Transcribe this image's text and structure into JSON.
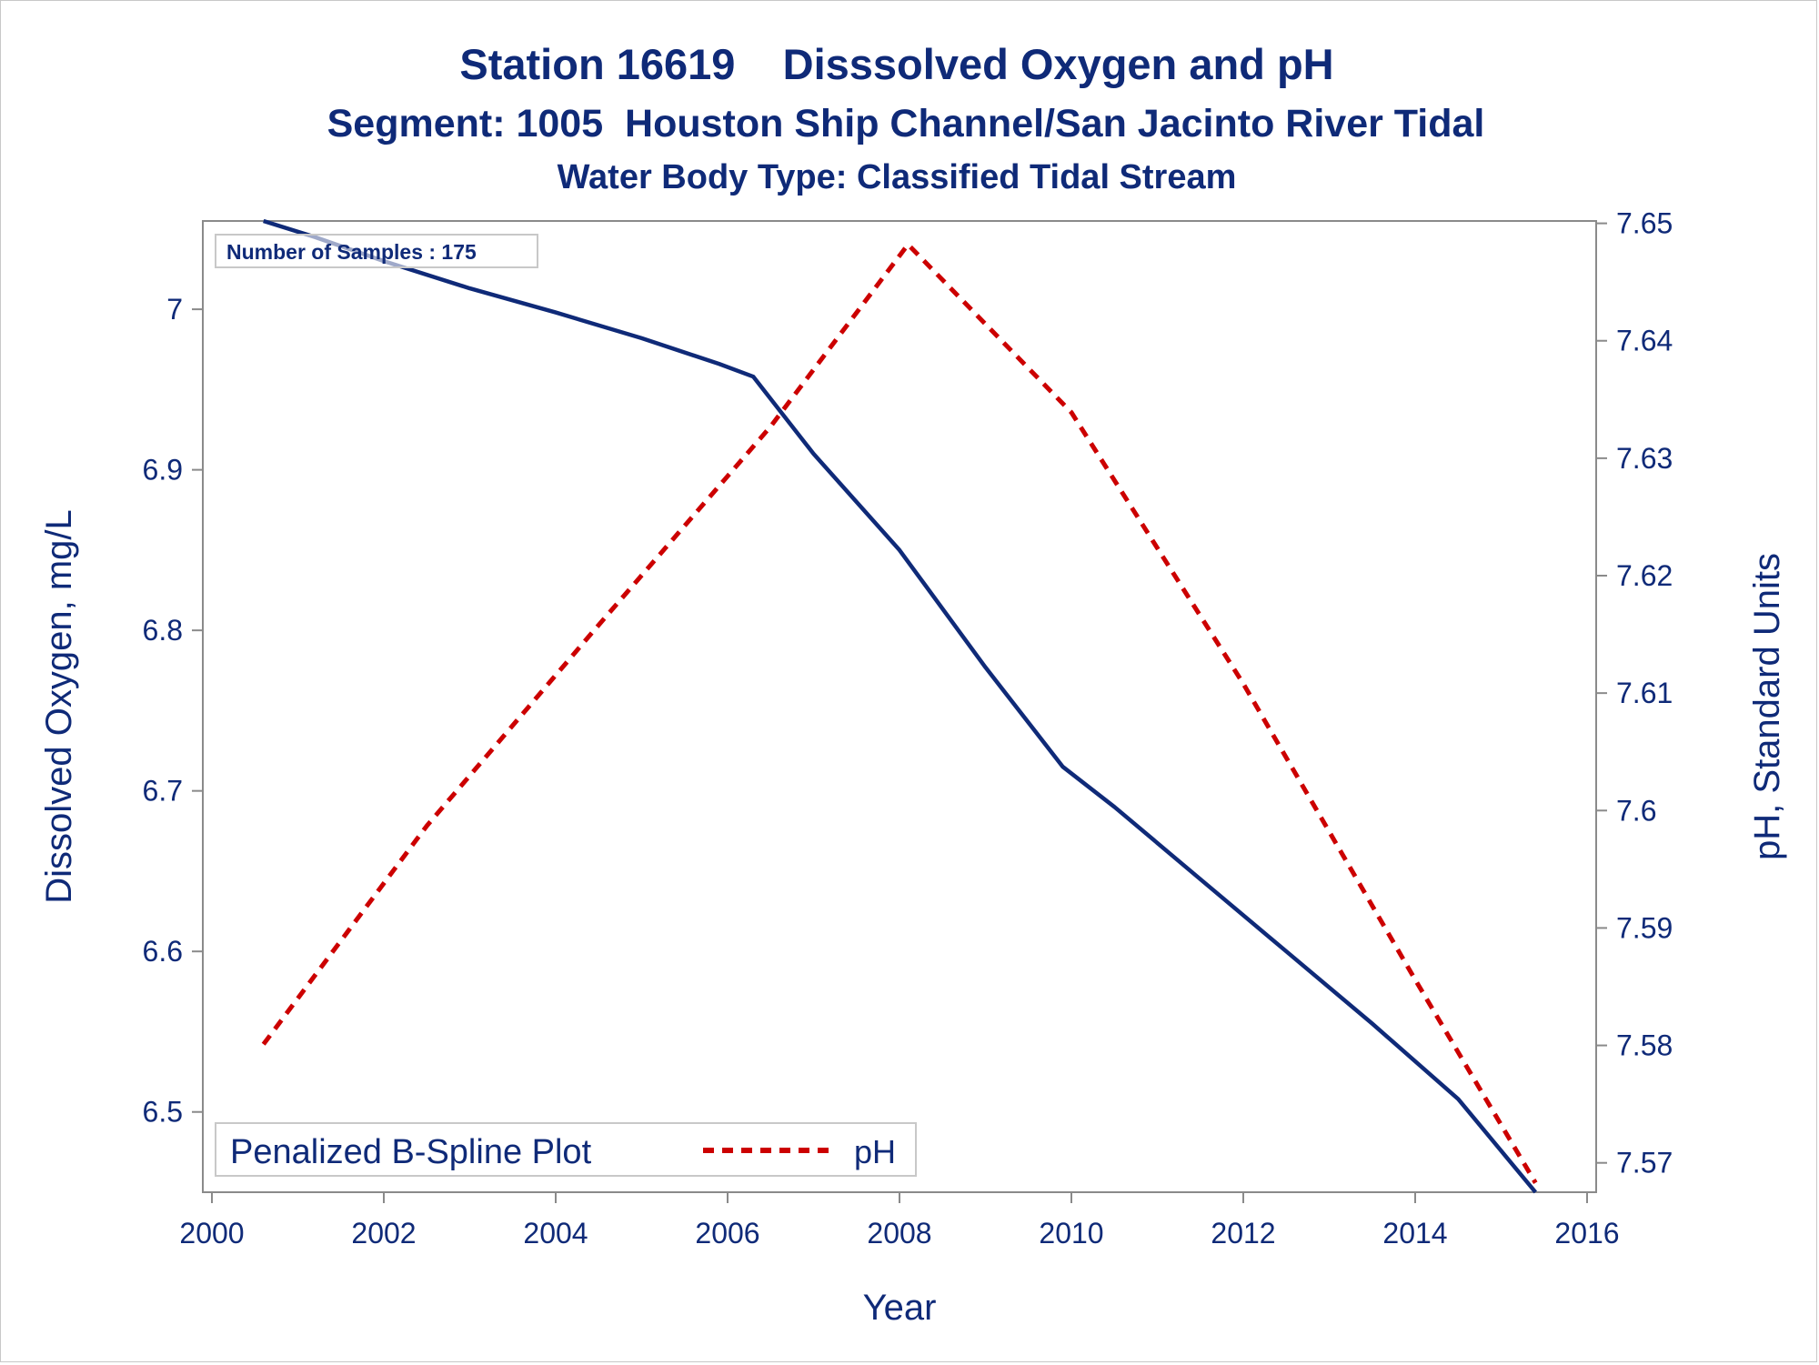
{
  "chart_data": {
    "type": "line",
    "title": "Station 16619    Disssolved Oxygen and pH",
    "subtitle": "Segment: 1005  Houston Ship Channel/San Jacinto River Tidal",
    "subtitle2": "Water Body Type: Classified Tidal Stream",
    "xlabel": "Year",
    "ylabel": "Dissolved Oxygen, mg/L",
    "y2label": "pH, Standard Units",
    "xlim": [
      2000,
      2016
    ],
    "ylim": [
      6.45,
      7.055
    ],
    "y2lim": [
      7.5675,
      7.6502
    ],
    "x_ticks": [
      "2000",
      "2002",
      "2004",
      "2006",
      "2008",
      "2010",
      "2012",
      "2014",
      "2016"
    ],
    "y_ticks": [
      "6.5",
      "6.6",
      "6.7",
      "6.8",
      "6.9",
      "7"
    ],
    "y2_ticks": [
      "7.57",
      "7.58",
      "7.59",
      "7.6",
      "7.61",
      "7.62",
      "7.63",
      "7.64",
      "7.65"
    ],
    "annotation": "Number of Samples : 175",
    "grid": false,
    "legend": {
      "placement": "bottom-left",
      "title": "Penalized B-Spline Plot",
      "entries": [
        "pH"
      ]
    },
    "series": [
      {
        "axis": "left",
        "color": "#0f2a78",
        "style": "solid",
        "x": [
          2000.6,
          2001.2,
          2002.0,
          2003.0,
          2004.0,
          2005.0,
          2005.9,
          2006.3,
          2007.0,
          2008.0,
          2009.0,
          2009.9,
          2010.5,
          2011.5,
          2012.5,
          2013.5,
          2014.5,
          2015.4
        ],
        "y": [
          7.055,
          7.045,
          7.03,
          7.013,
          6.998,
          6.982,
          6.966,
          6.958,
          6.91,
          6.85,
          6.777,
          6.715,
          6.69,
          6.645,
          6.6,
          6.555,
          6.508,
          6.45
        ]
      },
      {
        "name": "pH",
        "axis": "right",
        "color": "#cc0000",
        "style": "dashed",
        "x": [
          2000.6,
          2002.5,
          2004.5,
          2006.5,
          2008.1,
          2010.0,
          2012.0,
          2014.0,
          2015.4
        ],
        "y": [
          7.5801,
          7.5987,
          7.6158,
          7.6327,
          7.6482,
          7.6339,
          7.6108,
          7.5856,
          7.5683
        ]
      }
    ]
  }
}
